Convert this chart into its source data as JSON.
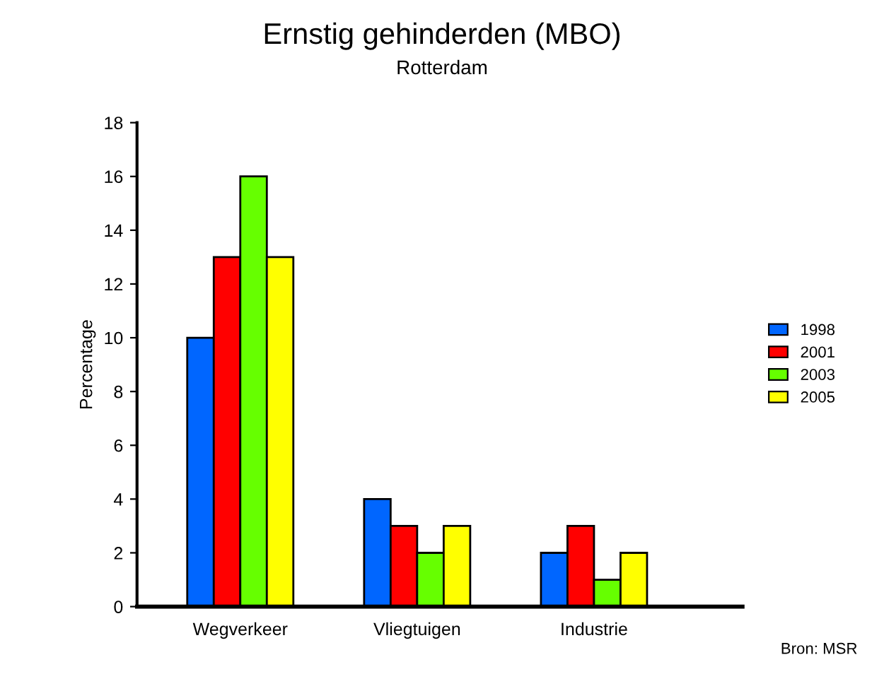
{
  "chart_data": {
    "type": "bar",
    "title": "Ernstig gehinderden (MBO)",
    "subtitle": "Rotterdam",
    "ylabel": "Percentage",
    "categories": [
      "Wegverkeer",
      "Vliegtuigen",
      "Industrie"
    ],
    "series": [
      {
        "name": "1998",
        "color": "#0066ff",
        "values": [
          10,
          4,
          2
        ]
      },
      {
        "name": "2001",
        "color": "#ff0000",
        "values": [
          13,
          3,
          3
        ]
      },
      {
        "name": "2003",
        "color": "#66ff00",
        "values": [
          16,
          2,
          1
        ]
      },
      {
        "name": "2005",
        "color": "#ffff00",
        "values": [
          13,
          3,
          2
        ]
      }
    ],
    "ylim": [
      0,
      18
    ],
    "yticks": [
      0,
      2,
      4,
      6,
      8,
      10,
      12,
      14,
      16,
      18
    ],
    "grid": false,
    "legend": "right",
    "annotations": [
      "Bron: MSR"
    ]
  }
}
